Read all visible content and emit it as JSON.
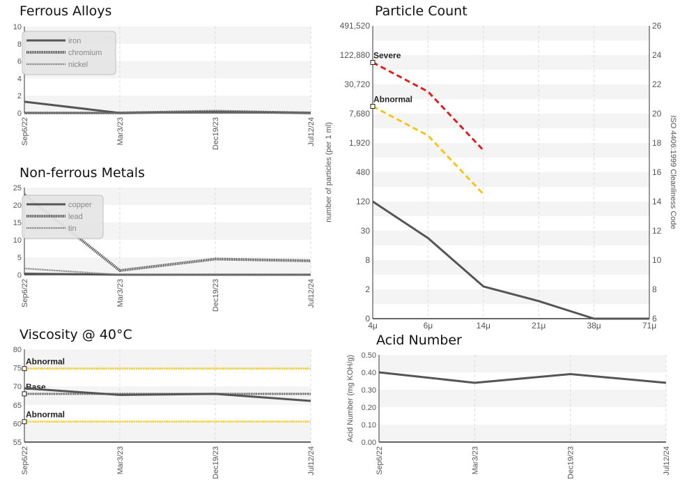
{
  "chart_data": [
    {
      "id": "ferrous",
      "type": "line",
      "title": "Ferrous Alloys",
      "categories": [
        "Sep6/22",
        "Mar3/23",
        "Dec19/23",
        "Jul12/24"
      ],
      "ylim": [
        0,
        10
      ],
      "yticks": [
        0,
        2,
        4,
        6,
        8,
        10
      ],
      "grid": true,
      "legend": "top-left",
      "series": [
        {
          "name": "iron",
          "values": [
            1.3,
            0.0,
            0.1,
            0.0
          ],
          "color": "#555555",
          "style": "solid"
        },
        {
          "name": "chromium",
          "values": [
            0.0,
            0.0,
            0.2,
            0.0
          ],
          "color": "#555555",
          "style": "dotted"
        },
        {
          "name": "nickel",
          "values": [
            0.0,
            0.0,
            0.0,
            0.0
          ],
          "color": "#777777",
          "style": "dotted-thin"
        }
      ]
    },
    {
      "id": "nonferrous",
      "type": "line",
      "title": "Non-ferrous Metals",
      "categories": [
        "Sep6/22",
        "Mar3/23",
        "Dec19/23",
        "Jul12/24"
      ],
      "ylim": [
        0,
        25
      ],
      "yticks": [
        0,
        5,
        10,
        15,
        20,
        25
      ],
      "grid": true,
      "legend": "top-left",
      "series": [
        {
          "name": "copper",
          "values": [
            0.3,
            0.0,
            0.0,
            0.0
          ],
          "color": "#555555",
          "style": "solid"
        },
        {
          "name": "lead",
          "values": [
            23,
            1.2,
            4.5,
            4.0
          ],
          "color": "#555555",
          "style": "dotted"
        },
        {
          "name": "tin",
          "values": [
            1.8,
            0.0,
            0.0,
            0.0
          ],
          "color": "#777777",
          "style": "dotted-thin"
        }
      ]
    },
    {
      "id": "viscosity",
      "type": "line",
      "title": "Viscosity @ 40°C",
      "categories": [
        "Sep6/22",
        "Mar3/23",
        "Dec19/23",
        "Jul12/24"
      ],
      "ylim": [
        55,
        80
      ],
      "yticks": [
        55,
        60,
        65,
        70,
        75,
        80
      ],
      "grid": true,
      "series": [
        {
          "values": [
            69.5,
            67.7,
            68.0,
            66.1
          ],
          "color": "#555555",
          "style": "solid"
        }
      ],
      "reference_lines": [
        {
          "label": "Abnormal",
          "value": 74.8,
          "color": "#f5c518",
          "style": "dotted"
        },
        {
          "label": "Base",
          "value": 68.0,
          "color": "#555555",
          "style": "dotted"
        },
        {
          "label": "Abnormal",
          "value": 60.5,
          "color": "#f5c518",
          "style": "dotted"
        }
      ]
    },
    {
      "id": "particle",
      "type": "line",
      "title": "Particle Count",
      "x": [
        "4μ",
        "6μ",
        "14μ",
        "21μ",
        "38μ",
        "71μ"
      ],
      "yticks_left": [
        "0",
        "2",
        "8",
        "30",
        "120",
        "480",
        "1,920",
        "7,680",
        "30,720",
        "122,880",
        "491,520"
      ],
      "yticks_right": [
        6,
        8,
        10,
        12,
        14,
        16,
        18,
        20,
        22,
        24,
        26
      ],
      "ylim_iso": [
        6,
        26
      ],
      "ylabel": "number of particles (per 1 ml)",
      "ylabel_right": "ISO 4406:1999 Cleanliness Code",
      "scale": "log",
      "grid": true,
      "series": [
        {
          "values_iso": [
            14.0,
            11.5,
            8.2,
            7.2,
            6.0,
            6.0
          ],
          "color": "#555555",
          "style": "solid"
        }
      ],
      "limits": [
        {
          "label": "Severe",
          "values_iso": [
            23.5,
            21.5,
            17.5
          ],
          "color": "#e02020",
          "style": "dashed"
        },
        {
          "label": "Abnormal",
          "values_iso": [
            20.5,
            18.5,
            14.5
          ],
          "color": "#f5c518",
          "style": "dashed"
        }
      ]
    },
    {
      "id": "acid",
      "type": "line",
      "title": "Acid Number",
      "categories": [
        "Sep6/22",
        "Mar3/23",
        "Dec19/23",
        "Jul12/24"
      ],
      "ylim": [
        0,
        0.5
      ],
      "yticks": [
        "0.00",
        "0.10",
        "0.20",
        "0.30",
        "0.40",
        "0.50"
      ],
      "ylabel": "Acid Number (mg KOH/g)",
      "grid": true,
      "series": [
        {
          "values": [
            0.4,
            0.34,
            0.39,
            0.34
          ],
          "color": "#555555",
          "style": "solid"
        }
      ]
    }
  ]
}
